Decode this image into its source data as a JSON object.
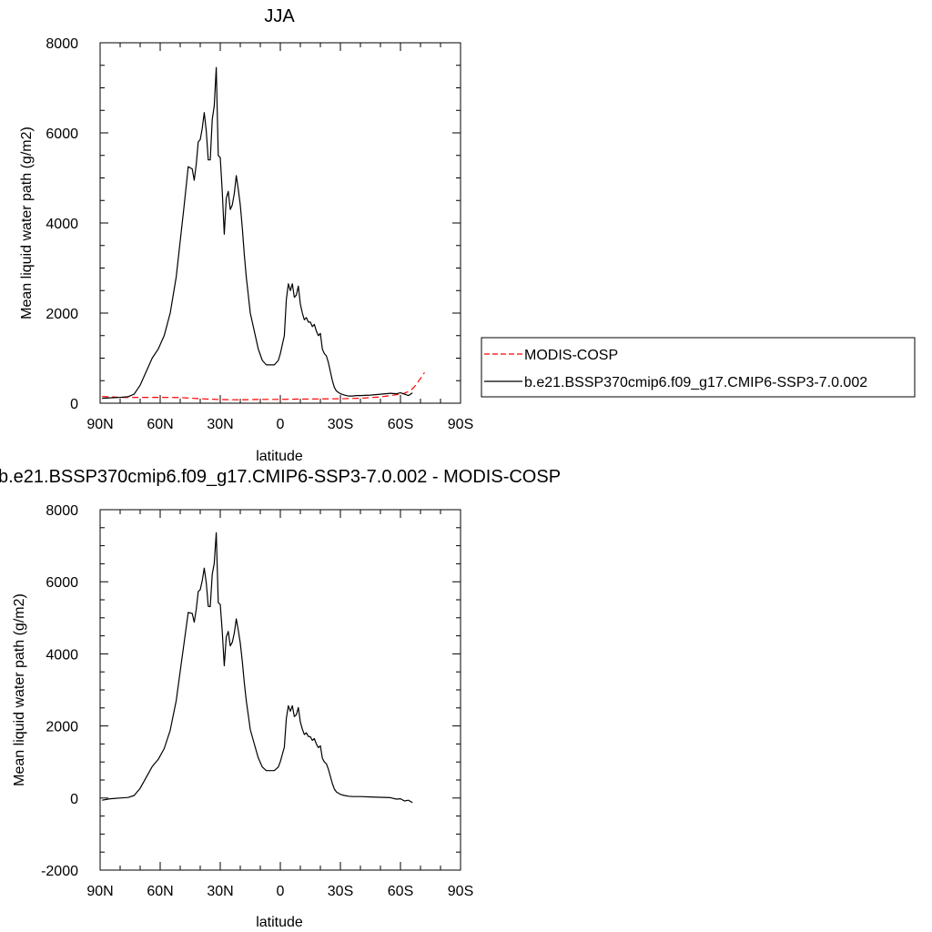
{
  "chart_data": [
    {
      "type": "line",
      "title": "JJA",
      "xlabel": "latitude",
      "ylabel": "Mean liquid water path (g/m2)",
      "xlim": [
        90,
        -90
      ],
      "ylim": [
        0,
        8000
      ],
      "x_ticks": [
        90,
        60,
        30,
        0,
        -30,
        -60,
        -90
      ],
      "x_tick_labels": [
        "90N",
        "60N",
        "30N",
        "0",
        "30S",
        "60S",
        "90S"
      ],
      "y_ticks": [
        0,
        2000,
        4000,
        6000,
        8000
      ],
      "y_tick_labels": [
        "0",
        "2000",
        "4000",
        "6000",
        "8000"
      ],
      "legend": "right",
      "series": [
        {
          "name": "MODIS-COSP",
          "color": "#ff0000",
          "dash": "dashed",
          "x": [
            89,
            80,
            70,
            60,
            50,
            40,
            30,
            20,
            10,
            0,
            -10,
            -20,
            -30,
            -40,
            -50,
            -55,
            -60,
            -62,
            -64,
            -66,
            -68,
            -70,
            -72
          ],
          "y": [
            150,
            130,
            130,
            130,
            125,
            100,
            80,
            75,
            85,
            85,
            90,
            95,
            100,
            110,
            140,
            170,
            200,
            220,
            260,
            320,
            420,
            550,
            680
          ]
        },
        {
          "name": "b.e21.BSSP370cmip6.f09_g17.CMIP6-SSP3-7.0.002",
          "color": "#000000",
          "dash": "solid",
          "x": [
            89,
            85,
            80,
            76,
            73,
            70,
            67,
            64,
            61,
            58,
            55,
            52,
            50,
            48,
            46,
            44,
            43,
            42,
            41,
            40,
            39,
            38,
            37,
            36,
            35,
            34,
            33,
            32,
            31,
            30,
            29,
            28,
            27,
            26,
            25,
            24,
            23,
            22,
            21,
            20,
            19,
            18,
            17,
            16,
            15,
            13,
            11,
            9,
            7,
            5,
            3,
            1,
            0,
            -1,
            -2,
            -3,
            -4,
            -5,
            -6,
            -7,
            -8,
            -9,
            -10,
            -11,
            -12,
            -13,
            -14,
            -15,
            -16,
            -17,
            -18,
            -19,
            -20,
            -21,
            -22,
            -23,
            -24,
            -25,
            -26,
            -27,
            -28,
            -30,
            -32,
            -34,
            -36,
            -38,
            -40,
            -45,
            -50,
            -55,
            -58,
            -60,
            -62,
            -64,
            -66
          ],
          "y": [
            110,
            120,
            130,
            145,
            200,
            400,
            700,
            1000,
            1200,
            1500,
            2000,
            2800,
            3600,
            4400,
            5250,
            5200,
            4950,
            5300,
            5800,
            5850,
            6100,
            6450,
            6050,
            5400,
            5400,
            6300,
            6600,
            7450,
            5500,
            5450,
            4700,
            3750,
            4550,
            4700,
            4300,
            4400,
            4650,
            5050,
            4750,
            4400,
            3900,
            3300,
            2800,
            2400,
            2000,
            1600,
            1200,
            950,
            850,
            850,
            850,
            950,
            1100,
            1300,
            1500,
            2300,
            2650,
            2500,
            2650,
            2350,
            2400,
            2600,
            2200,
            2000,
            1850,
            1900,
            1800,
            1800,
            1700,
            1750,
            1600,
            1500,
            1550,
            1200,
            1100,
            1050,
            900,
            700,
            500,
            350,
            270,
            210,
            180,
            160,
            160,
            170,
            170,
            180,
            200,
            220,
            210,
            230,
            200,
            170,
            230
          ]
        }
      ]
    },
    {
      "type": "line",
      "title": "b.e21.BSSP370cmip6.f09_g17.CMIP6-SSP3-7.0.002 - MODIS-COSP",
      "xlabel": "latitude",
      "ylabel": "Mean liquid water path (g/m2)",
      "xlim": [
        90,
        -90
      ],
      "ylim": [
        -2000,
        8000
      ],
      "x_ticks": [
        90,
        60,
        30,
        0,
        -30,
        -60,
        -90
      ],
      "x_tick_labels": [
        "90N",
        "60N",
        "30N",
        "0",
        "30S",
        "60S",
        "90S"
      ],
      "y_ticks": [
        -2000,
        0,
        2000,
        4000,
        6000,
        8000
      ],
      "y_tick_labels": [
        "-2000",
        "0",
        "2000",
        "4000",
        "6000",
        "8000"
      ],
      "series": [
        {
          "color": "#000000",
          "dash": "solid",
          "x": [
            89,
            85,
            80,
            76,
            73,
            70,
            67,
            64,
            61,
            58,
            55,
            52,
            50,
            48,
            46,
            44,
            43,
            42,
            41,
            40,
            39,
            38,
            37,
            36,
            35,
            34,
            33,
            32,
            31,
            30,
            29,
            28,
            27,
            26,
            25,
            24,
            23,
            22,
            21,
            20,
            19,
            18,
            17,
            16,
            15,
            13,
            11,
            9,
            7,
            5,
            3,
            1,
            0,
            -1,
            -2,
            -3,
            -4,
            -5,
            -6,
            -7,
            -8,
            -9,
            -10,
            -11,
            -12,
            -13,
            -14,
            -15,
            -16,
            -17,
            -18,
            -19,
            -20,
            -21,
            -22,
            -23,
            -24,
            -25,
            -26,
            -27,
            -28,
            -30,
            -32,
            -34,
            -36,
            -38,
            -40,
            -45,
            -50,
            -55,
            -58,
            -60,
            -62,
            -64,
            -66
          ],
          "y": [
            -60,
            -20,
            0,
            15,
            70,
            270,
            570,
            870,
            1070,
            1370,
            1880,
            2700,
            3520,
            4330,
            5150,
            5120,
            4880,
            5230,
            5730,
            5780,
            6030,
            6380,
            5980,
            5320,
            5310,
            6210,
            6510,
            7360,
            5420,
            5370,
            4620,
            3670,
            4470,
            4620,
            4220,
            4320,
            4570,
            4970,
            4660,
            4300,
            3800,
            3200,
            2700,
            2300,
            1900,
            1500,
            1110,
            860,
            760,
            760,
            760,
            860,
            1010,
            1210,
            1410,
            2210,
            2560,
            2410,
            2560,
            2260,
            2310,
            2510,
            2110,
            1910,
            1760,
            1810,
            1710,
            1700,
            1600,
            1650,
            1500,
            1400,
            1450,
            1100,
            1000,
            950,
            800,
            600,
            400,
            250,
            170,
            100,
            70,
            50,
            40,
            40,
            40,
            30,
            20,
            10,
            -30,
            -20,
            -80,
            -60,
            -130
          ]
        }
      ]
    }
  ]
}
